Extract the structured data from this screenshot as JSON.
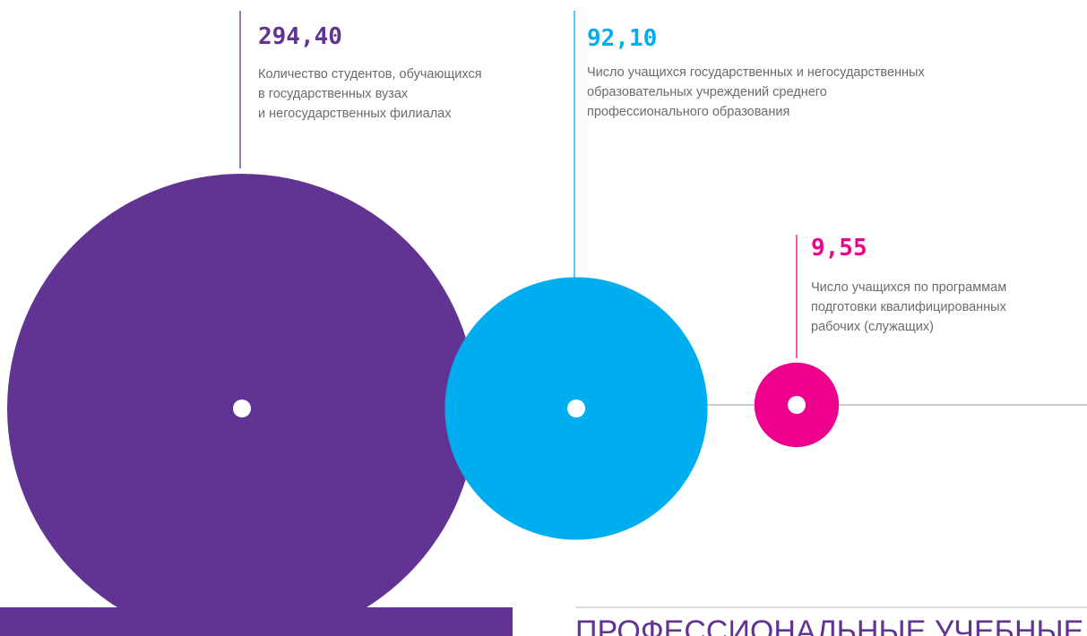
{
  "chart_data": {
    "type": "bubble",
    "values": [
      294.4,
      92.1,
      9.55
    ],
    "value_labels": [
      "294,40",
      "92,10",
      "9,55"
    ],
    "descriptions": [
      [
        "Количество студентов, обучающихся",
        "в государственных вузах",
        "и негосударственных филиалах"
      ],
      [
        "Число учащихся государственных и негосударственных",
        "образовательных учреждений среднего",
        "профессионального образования"
      ],
      [
        "Число учащихся по программам",
        "подготовки квалифицированных",
        "рабочих (служащих)"
      ]
    ],
    "colors": [
      "#613493",
      "#00aeef",
      "#ec008c"
    ],
    "section_title": "ПРОФЕССИОНАЛЬНЫЕ УЧЕБНЫЕ"
  }
}
